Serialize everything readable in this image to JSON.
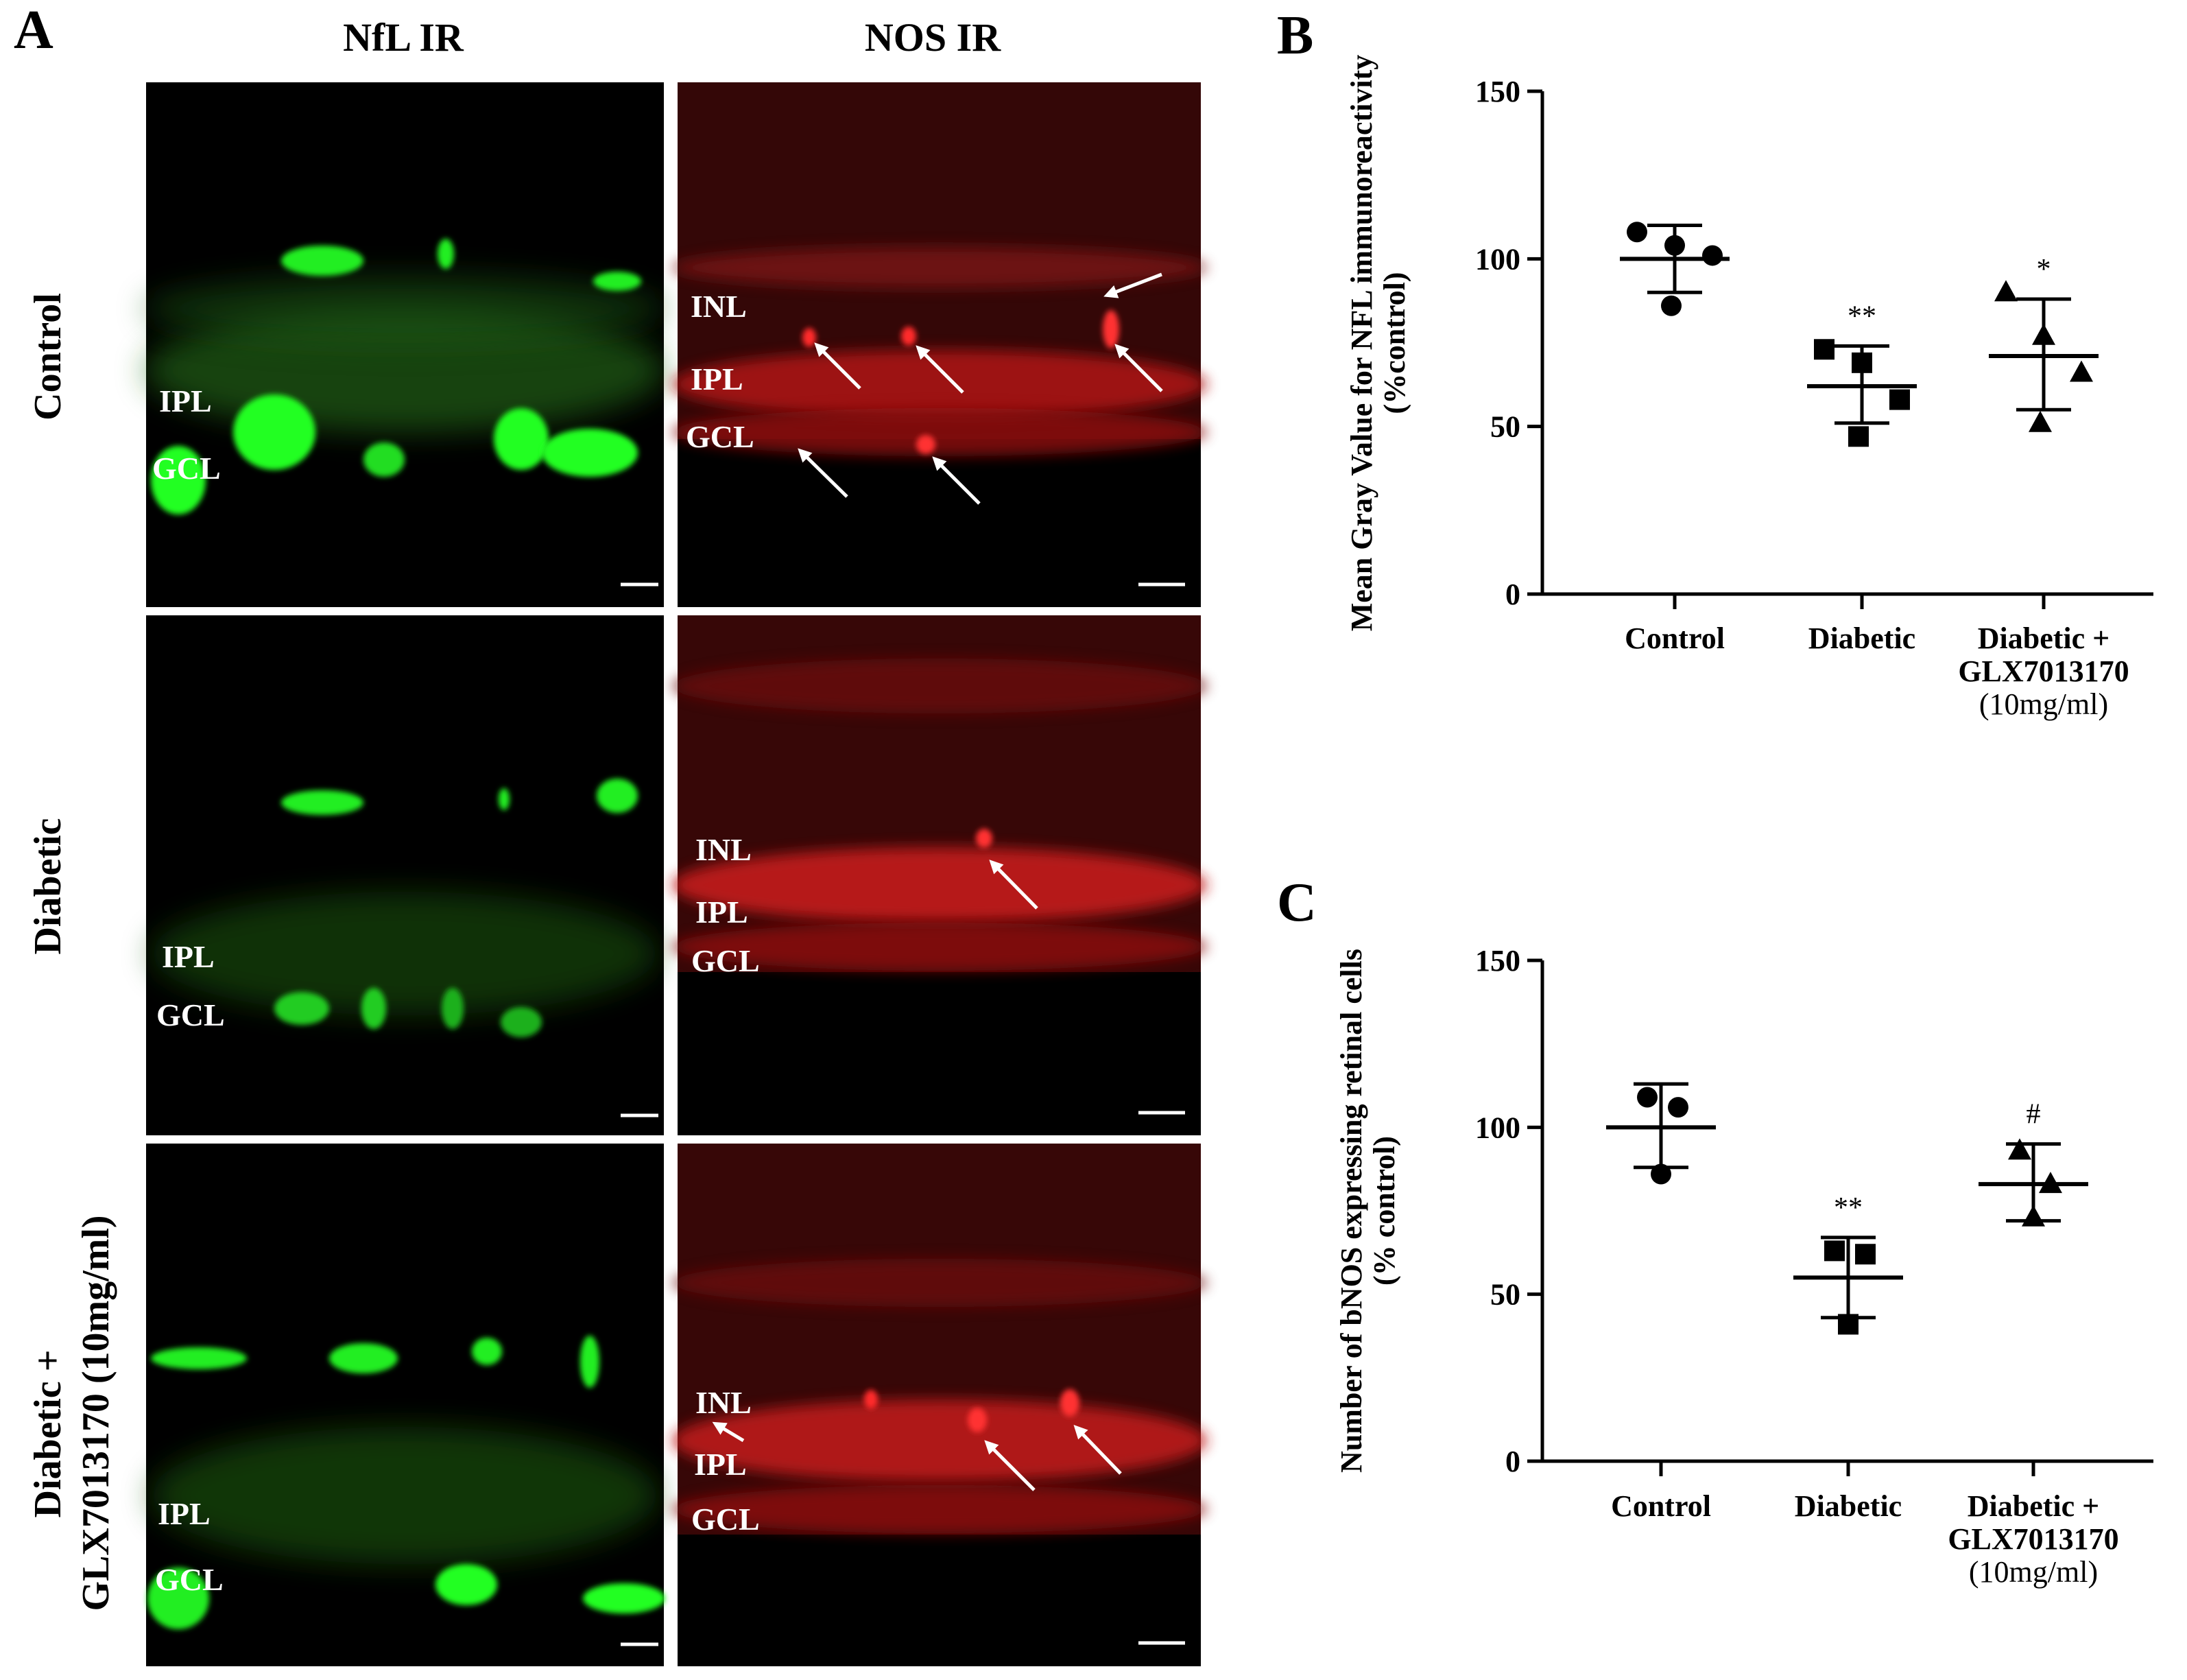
{
  "panel_a": {
    "letter": "A",
    "column_headers": [
      "NfL IR",
      "NOS IR"
    ],
    "rows": [
      {
        "label_lines": [
          "Control"
        ],
        "nfl_labels": [
          "IPL",
          "GCL"
        ],
        "nos_labels": [
          "INL",
          "IPL",
          "GCL"
        ]
      },
      {
        "label_lines": [
          "Diabetic"
        ],
        "nfl_labels": [
          "IPL",
          "GCL"
        ],
        "nos_labels": [
          "INL",
          "IPL",
          "GCL"
        ]
      },
      {
        "label_lines": [
          "Diabetic +",
          "GLX7013170 (10mg/ml)"
        ],
        "nfl_labels": [
          "IPL",
          "GCL"
        ],
        "nos_labels": [
          "INL",
          "IPL",
          "GCL"
        ]
      }
    ],
    "colors": {
      "nfl": "#19e619",
      "nos": "#ff2020",
      "background": "#000000",
      "arrows": "#ffffff"
    }
  },
  "chart_data": [
    {
      "panel": "B",
      "type": "scatter",
      "ylabel_lines": [
        "Mean Gray Value for NFL immunoreactivity",
        "(%control)"
      ],
      "ylim": [
        0,
        150
      ],
      "yticks": [
        0,
        50,
        100,
        150
      ],
      "categories": [
        {
          "lines": [
            "Control"
          ]
        },
        {
          "lines": [
            "Diabetic"
          ]
        },
        {
          "lines": [
            "Diabetic +",
            "GLX7013170",
            "(10mg/ml)"
          ]
        }
      ],
      "groups": [
        {
          "marker": "circle",
          "points": [
            108,
            104,
            101,
            86
          ],
          "mean": 100,
          "sd_low": 90,
          "sd_high": 110,
          "sig": ""
        },
        {
          "marker": "square",
          "points": [
            73,
            69,
            58,
            47
          ],
          "mean": 62,
          "sd_low": 51,
          "sd_high": 74,
          "sig": "**"
        },
        {
          "marker": "triangle",
          "points": [
            90,
            77,
            66,
            51
          ],
          "mean": 71,
          "sd_low": 55,
          "sd_high": 88,
          "sig": "*"
        }
      ]
    },
    {
      "panel": "C",
      "type": "scatter",
      "ylabel_lines": [
        "Number of bNOS expressing retinal cells",
        "(% control)"
      ],
      "ylim": [
        0,
        150
      ],
      "yticks": [
        0,
        50,
        100,
        150
      ],
      "categories": [
        {
          "lines": [
            "Control"
          ]
        },
        {
          "lines": [
            "Diabetic"
          ]
        },
        {
          "lines": [
            "Diabetic +",
            "GLX7013170",
            "(10mg/ml)"
          ]
        }
      ],
      "groups": [
        {
          "marker": "circle",
          "points": [
            109,
            106,
            86
          ],
          "mean": 100,
          "sd_low": 88,
          "sd_high": 113,
          "sig": ""
        },
        {
          "marker": "square",
          "points": [
            63,
            62,
            41
          ],
          "mean": 55,
          "sd_low": 43,
          "sd_high": 67,
          "sig": "**"
        },
        {
          "marker": "triangle",
          "points": [
            93,
            83,
            73
          ],
          "mean": 83,
          "sd_low": 72,
          "sd_high": 95,
          "sig": "#"
        }
      ]
    }
  ]
}
